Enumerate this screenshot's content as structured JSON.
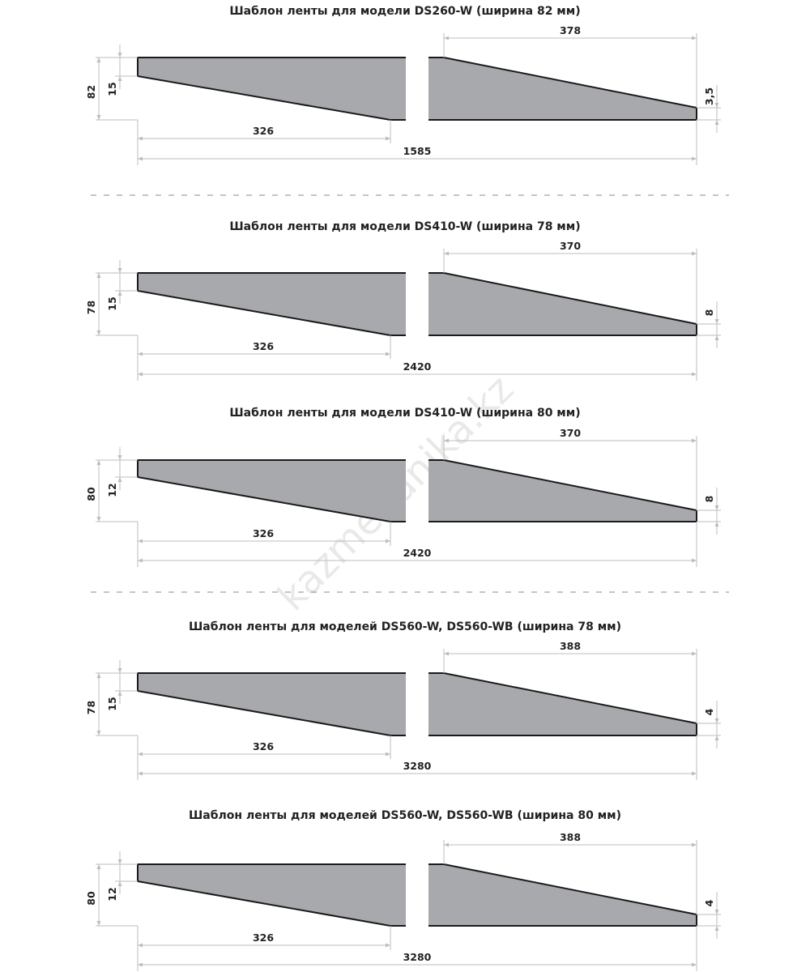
{
  "watermark": "kazmehanika.kz",
  "colors": {
    "fill": "#a7a9ad",
    "outline": "#1a1a1a",
    "dim_line": "#bdbdbd",
    "text": "#222222",
    "separator": "#888888"
  },
  "templates": [
    {
      "title": "Шаблон ленты для модели DS260-W (ширина 82 мм)",
      "width": "82",
      "left_step": "15",
      "bottom_left": "326",
      "total": "1585",
      "top_right": "378",
      "right_step": "3,5"
    },
    {
      "title": "Шаблон ленты для модели DS410-W (ширина 78 мм)",
      "width": "78",
      "left_step": "15",
      "bottom_left": "326",
      "total": "2420",
      "top_right": "370",
      "right_step": "8"
    },
    {
      "title": "Шаблон ленты для модели DS410-W (ширина 80 мм)",
      "width": "80",
      "left_step": "12",
      "bottom_left": "326",
      "total": "2420",
      "top_right": "370",
      "right_step": "8"
    },
    {
      "title": "Шаблон ленты для моделей DS560-W, DS560-WB (ширина 78 мм)",
      "width": "78",
      "left_step": "15",
      "bottom_left": "326",
      "total": "3280",
      "top_right": "388",
      "right_step": "4"
    },
    {
      "title": "Шаблон ленты для моделей DS560-W, DS560-WB (ширина 80 мм)",
      "width": "80",
      "left_step": "12",
      "bottom_left": "326",
      "total": "3280",
      "top_right": "388",
      "right_step": "4"
    }
  ]
}
